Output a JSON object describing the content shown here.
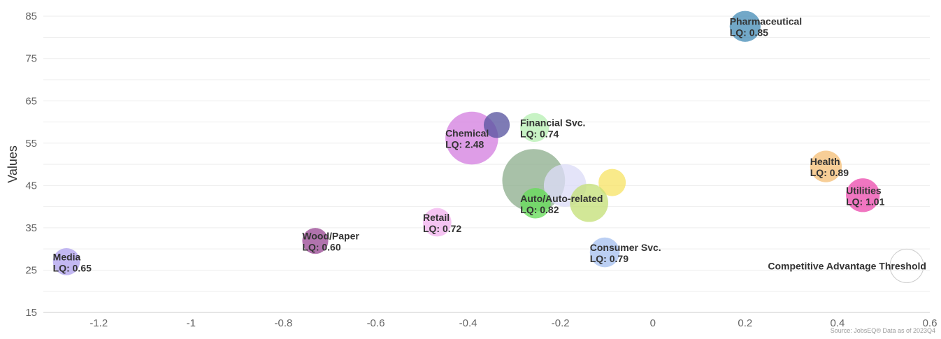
{
  "chart_data": {
    "type": "scatter",
    "subtype": "bubble",
    "ylabel": "Values",
    "xlabel": "",
    "xlim": [
      -1.32,
      0.6
    ],
    "ylim": [
      15,
      88
    ],
    "x_ticks": [
      -1.2,
      -1,
      -0.8,
      -0.6,
      -0.4,
      -0.2,
      0,
      0.2,
      0.4,
      0.6
    ],
    "x_tick_labels": [
      "-1.2",
      "-1",
      "-0.8",
      "-0.6",
      "-0.4",
      "-0.2",
      "0",
      "0.2",
      "0.4",
      "0.6"
    ],
    "y_ticks": [
      15,
      25,
      35,
      45,
      55,
      65,
      75,
      85
    ],
    "y_tick_labels": [
      "15",
      "25",
      "35",
      "45",
      "55",
      "65",
      "75",
      "85"
    ],
    "grid": true,
    "source": "Source: JobsEQ® Data as of 2023Q4",
    "points": [
      {
        "name": "Pharmaceutical",
        "lq": "LQ: 0.85",
        "x": 0.2,
        "y": 82.6,
        "size": 0.85,
        "color": "#4a90b8",
        "label_anchor": "left"
      },
      {
        "name": "Health",
        "lq": "LQ: 0.89",
        "x": 0.375,
        "y": 49.5,
        "size": 0.89,
        "color": "#f5c07a",
        "label_anchor": "left"
      },
      {
        "name": "Utilities",
        "lq": "LQ: 1.01",
        "x": 0.455,
        "y": 42.7,
        "size": 1.01,
        "color": "#ec4fb0",
        "label_anchor": "left"
      },
      {
        "name": "Chemical",
        "lq": "LQ: 2.48",
        "x": -0.392,
        "y": 56.2,
        "size": 2.48,
        "color": "#d582e0",
        "label_anchor": "left"
      },
      {
        "name": "",
        "lq": "",
        "x": -0.338,
        "y": 59.3,
        "size": 0.6,
        "color": "#5a56a0",
        "label_anchor": "none"
      },
      {
        "name": "Financial Svc.",
        "lq": "LQ: 0.74",
        "x": -0.256,
        "y": 58.7,
        "size": 0.74,
        "color": "#b9efb5",
        "label_anchor": "left"
      },
      {
        "name": "",
        "lq": "",
        "x": -0.258,
        "y": 46.2,
        "size": 3.5,
        "color": "#8fb08f",
        "label_anchor": "none"
      },
      {
        "name": "",
        "lq": "",
        "x": -0.19,
        "y": 45.0,
        "size": 1.6,
        "color": "#dcdcf7",
        "label_anchor": "none"
      },
      {
        "name": "",
        "lq": "",
        "x": -0.088,
        "y": 45.7,
        "size": 0.66,
        "color": "#f7e469",
        "label_anchor": "none"
      },
      {
        "name": "",
        "lq": "",
        "x": -0.138,
        "y": 40.9,
        "size": 1.3,
        "color": "#c5e07a",
        "label_anchor": "none"
      },
      {
        "name": "Auto/Auto-related",
        "lq": "LQ: 0.82",
        "x": -0.254,
        "y": 40.8,
        "size": 0.82,
        "color": "#66dd5a",
        "label_anchor": "left"
      },
      {
        "name": "Retail",
        "lq": "LQ: 0.72",
        "x": -0.467,
        "y": 36.3,
        "size": 0.72,
        "color": "#f2b3ee",
        "label_anchor": "left"
      },
      {
        "name": "Wood/Paper",
        "lq": "LQ: 0.60",
        "x": -0.731,
        "y": 31.9,
        "size": 0.6,
        "color": "#9b4c96",
        "label_anchor": "left"
      },
      {
        "name": "Consumer Svc.",
        "lq": "LQ: 0.79",
        "x": -0.104,
        "y": 29.2,
        "size": 0.79,
        "color": "#a8c2f0",
        "label_anchor": "left"
      },
      {
        "name": "Media",
        "lq": "LQ: 0.65",
        "x": -1.27,
        "y": 27.0,
        "size": 0.65,
        "color": "#b2a4ee",
        "label_anchor": "left"
      },
      {
        "name": "Competitive Advantage Threshold",
        "lq": "",
        "x": 0.55,
        "y": 26.0,
        "size": 1.0,
        "color": "none",
        "stroke": "#cccccc",
        "label_anchor": "right"
      }
    ]
  }
}
